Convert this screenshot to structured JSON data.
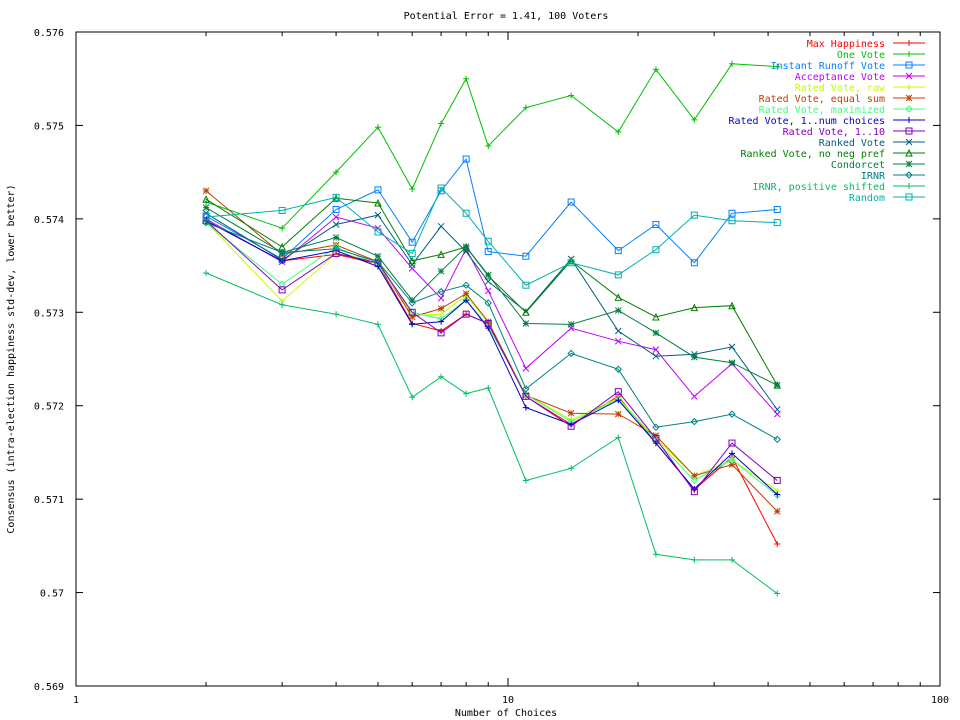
{
  "chart_data": {
    "type": "line",
    "title": "Potential Error = 1.41, 100 Voters",
    "xlabel": "Number of Choices",
    "ylabel": "Consensus (intra-election happiness std-dev, lower better)",
    "x_scale": "log",
    "xlim": [
      1,
      100
    ],
    "ylim": [
      0.569,
      0.576
    ],
    "x_ticks": [
      1,
      10,
      100
    ],
    "x_tick_labels": [
      "1",
      "10",
      "100"
    ],
    "y_ticks": [
      0.569,
      0.57,
      0.571,
      0.572,
      0.573,
      0.574,
      0.575,
      0.576
    ],
    "y_tick_labels": [
      "0.569",
      "0.57",
      "0.571",
      "0.572",
      "0.573",
      "0.574",
      "0.575",
      "0.576"
    ],
    "legend_position": "top-right",
    "x": [
      2,
      3,
      4,
      5,
      6,
      7,
      8,
      9,
      11,
      14,
      18,
      22,
      27,
      33,
      42
    ],
    "series": [
      {
        "name": "Max Happiness",
        "color": "#ff0000",
        "marker": "plus",
        "values": [
          0.57398,
          0.57355,
          0.57362,
          0.57352,
          0.57288,
          0.5728,
          0.57298,
          0.57288,
          0.5721,
          0.5718,
          0.5721,
          0.5716,
          0.5711,
          0.57145,
          0.57052
        ]
      },
      {
        "name": "One Vote",
        "color": "#00c000",
        "marker": "plus",
        "values": [
          0.57418,
          0.5739,
          0.5745,
          0.57498,
          0.57432,
          0.57502,
          0.5755,
          0.57478,
          0.57519,
          0.57532,
          0.57493,
          0.5756,
          0.57506,
          0.57566,
          0.57563
        ]
      },
      {
        "name": "Instant Runoff Vote",
        "color": "#0080ff",
        "marker": "square",
        "values": [
          0.57403,
          0.57357,
          0.5741,
          0.57431,
          0.57375,
          0.5743,
          0.57464,
          0.57365,
          0.5736,
          0.57418,
          0.57366,
          0.57394,
          0.57353,
          0.57406,
          0.5741
        ]
      },
      {
        "name": "Acceptance Vote",
        "color": "#c000ff",
        "marker": "x",
        "values": [
          0.574,
          0.57354,
          0.57402,
          0.5739,
          0.57347,
          0.57315,
          0.57368,
          0.57323,
          0.5724,
          0.57283,
          0.57269,
          0.5726,
          0.5721,
          0.57245,
          0.57191
        ]
      },
      {
        "name": "Rated Vote, raw",
        "color": "#c0ff00",
        "marker": "plus",
        "values": [
          0.57397,
          0.57312,
          0.57363,
          0.57355,
          0.57297,
          0.57298,
          0.57318,
          0.57289,
          0.57212,
          0.57185,
          0.57208,
          0.57165,
          0.57125,
          0.57142,
          0.57109
        ]
      },
      {
        "name": "Rated Vote, equal sum",
        "color": "#c04000",
        "marker": "star",
        "values": [
          0.5743,
          0.57362,
          0.57372,
          0.57354,
          0.57295,
          0.57304,
          0.5732,
          0.5729,
          0.57211,
          0.57192,
          0.57191,
          0.57168,
          0.57125,
          0.57137,
          0.57087
        ]
      },
      {
        "name": "Rated Vote, maximized",
        "color": "#40ff80",
        "marker": "diamond",
        "values": [
          0.57396,
          0.5733,
          0.5737,
          0.57351,
          0.573,
          0.57293,
          0.57313,
          0.57285,
          0.57212,
          0.57183,
          0.57207,
          0.57163,
          0.5712,
          0.57142,
          0.57104
        ]
      },
      {
        "name": "Rated Vote, 1..num choices",
        "color": "#0000c0",
        "marker": "plus",
        "values": [
          0.57398,
          0.57355,
          0.57366,
          0.57349,
          0.57287,
          0.5729,
          0.57313,
          0.57283,
          0.57198,
          0.5718,
          0.57206,
          0.5716,
          0.57111,
          0.57149,
          0.57105
        ]
      },
      {
        "name": "Rated Vote, 1..10",
        "color": "#8000c0",
        "marker": "square",
        "values": [
          0.57398,
          0.57324,
          0.57363,
          0.57353,
          0.573,
          0.57278,
          0.57298,
          0.57288,
          0.5721,
          0.57178,
          0.57215,
          0.57165,
          0.57108,
          0.5716,
          0.5712
        ]
      },
      {
        "name": "Ranked Vote",
        "color": "#006080",
        "marker": "x",
        "values": [
          0.57406,
          0.57356,
          0.57394,
          0.57404,
          0.57351,
          0.57392,
          0.57365,
          0.57333,
          0.57301,
          0.57357,
          0.5728,
          0.57253,
          0.57255,
          0.57263,
          0.57196
        ]
      },
      {
        "name": "Ranked Vote, no neg pref",
        "color": "#008000",
        "marker": "triangle",
        "values": [
          0.57421,
          0.5737,
          0.57422,
          0.57417,
          0.57355,
          0.57362,
          0.5737,
          0.57339,
          0.573,
          0.57355,
          0.57316,
          0.57295,
          0.57305,
          0.57307,
          0.57222
        ]
      },
      {
        "name": "Condorcet",
        "color": "#008040",
        "marker": "star",
        "values": [
          0.57412,
          0.57364,
          0.5738,
          0.5736,
          0.57313,
          0.57344,
          0.5737,
          0.5734,
          0.57288,
          0.57287,
          0.57302,
          0.57278,
          0.57252,
          0.57246,
          0.57222
        ]
      },
      {
        "name": "IRNR",
        "color": "#008080",
        "marker": "diamond",
        "values": [
          0.57396,
          0.57364,
          0.57368,
          0.57354,
          0.5731,
          0.57322,
          0.57329,
          0.5731,
          0.57218,
          0.57256,
          0.57239,
          0.57177,
          0.57183,
          0.57191,
          0.57164
        ]
      },
      {
        "name": "IRNR, positive shifted",
        "color": "#00c060",
        "marker": "plus",
        "values": [
          0.57342,
          0.57308,
          0.57298,
          0.57287,
          0.57209,
          0.57231,
          0.57213,
          0.57219,
          0.5712,
          0.57133,
          0.57166,
          0.57041,
          0.57035,
          0.57035,
          0.56999
        ]
      },
      {
        "name": "Random",
        "color": "#00b0b0",
        "marker": "square",
        "values": [
          0.57402,
          0.57409,
          0.57423,
          0.57386,
          0.57363,
          0.57433,
          0.57406,
          0.57376,
          0.57329,
          0.57353,
          0.5734,
          0.57367,
          0.57404,
          0.57398,
          0.57396
        ]
      }
    ]
  }
}
